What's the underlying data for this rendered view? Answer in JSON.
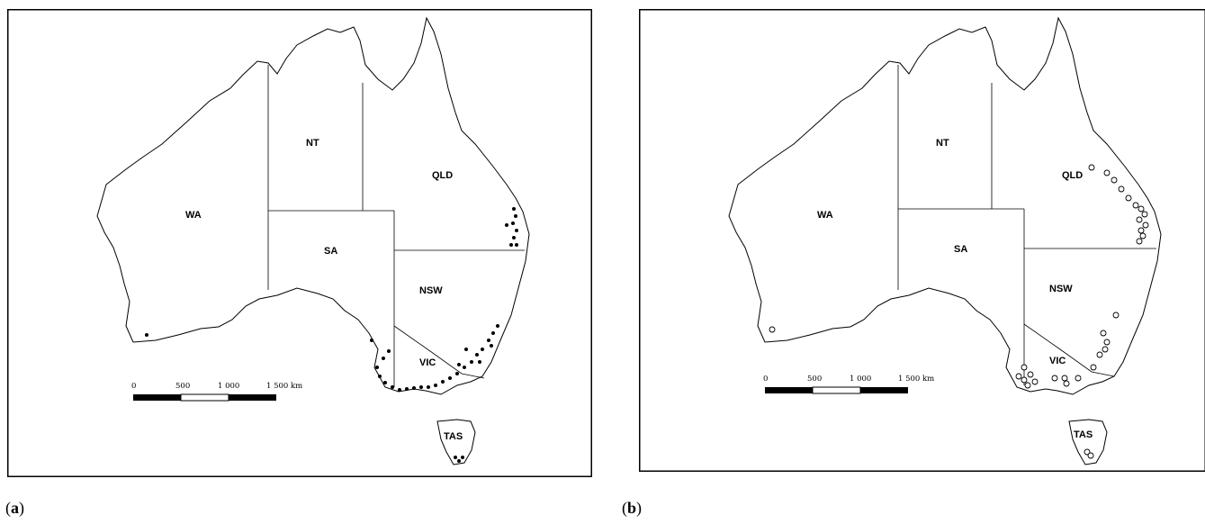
{
  "figure": {
    "panels": [
      {
        "caption_open": "(",
        "caption_letter": "a",
        "caption_close": ")",
        "marker_style": "filled-dot",
        "state_labels": [
          "WA",
          "NT",
          "QLD",
          "SA",
          "NSW",
          "VIC",
          "TAS"
        ],
        "scale_bar": {
          "ticks": [
            "0",
            "500",
            "1 000",
            "1 500 km"
          ]
        }
      },
      {
        "caption_open": "(",
        "caption_letter": "b",
        "caption_close": ")",
        "marker_style": "open-circle",
        "state_labels": [
          "WA",
          "NT",
          "QLD",
          "SA",
          "NSW",
          "VIC",
          "TAS"
        ],
        "scale_bar": {
          "ticks": [
            "0",
            "500",
            "1 000",
            "1 500 km"
          ]
        }
      }
    ]
  },
  "colors": {
    "outline": "#000000",
    "background": "#ffffff"
  }
}
